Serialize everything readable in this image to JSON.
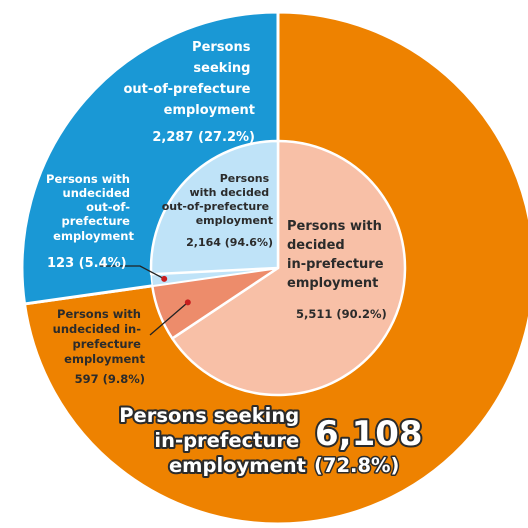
{
  "chart_data": {
    "type": "pie",
    "unit": "persons",
    "colors": {
      "out_pref": "#1a98d5",
      "in_pref": "#ee8200",
      "decided_out_pref": "#bfe3f8",
      "undecided_out_pref": "#bfe3f8",
      "decided_in_pref": "#f8c0a7",
      "undecided_in_pref": "#ed8c6b",
      "stroke": "#ffffff",
      "leader": "#222222",
      "marker": "#c81e1e"
    },
    "outer_ring": [
      {
        "id": "out_pref",
        "name": "Persons seeking out-of-prefecture employment",
        "value": 2287,
        "value_label": "2,287",
        "pct_label": "(27.2%)",
        "lines": [
          "Persons",
          "seeking",
          "out-of-prefecture",
          "employment"
        ]
      },
      {
        "id": "in_pref",
        "name": "Persons seeking in-prefecture employment",
        "value": 6108,
        "value_label": "6,108",
        "pct_label": "(72.8%)",
        "lines": [
          "Persons seeking",
          "in-prefecture",
          "employment"
        ]
      }
    ],
    "inner_ring": [
      {
        "id": "decided_out_pref",
        "parent": "out_pref",
        "name": "Persons with decided out-of-prefecture employment",
        "value": 2164,
        "value_label": "2,164",
        "pct_label": "(94.6%)",
        "lines": [
          "Persons",
          "with decided",
          "out-of-prefecture",
          "employment"
        ]
      },
      {
        "id": "undecided_out_pref",
        "parent": "out_pref",
        "name": "Persons with undecided out-of-prefecture employment",
        "value": 123,
        "value_label": "123",
        "pct_label": "(5.4%)",
        "lines": [
          "Persons with",
          "undecided",
          "out-of-",
          "prefecture",
          "employment"
        ]
      },
      {
        "id": "undecided_in_pref",
        "parent": "in_pref",
        "name": "Persons with undecided in-prefecture employment",
        "value": 597,
        "value_label": "597",
        "pct_label": "(9.8%)",
        "lines": [
          "Persons with",
          "undecided in-",
          "prefecture",
          "employment"
        ]
      },
      {
        "id": "decided_in_pref",
        "parent": "in_pref",
        "name": "Persons with decided in-prefecture employment",
        "value": 5511,
        "value_label": "5,511",
        "pct_label": "(90.2%)",
        "lines": [
          "Persons with",
          "decided",
          "in-prefecture",
          "employment"
        ]
      }
    ]
  }
}
